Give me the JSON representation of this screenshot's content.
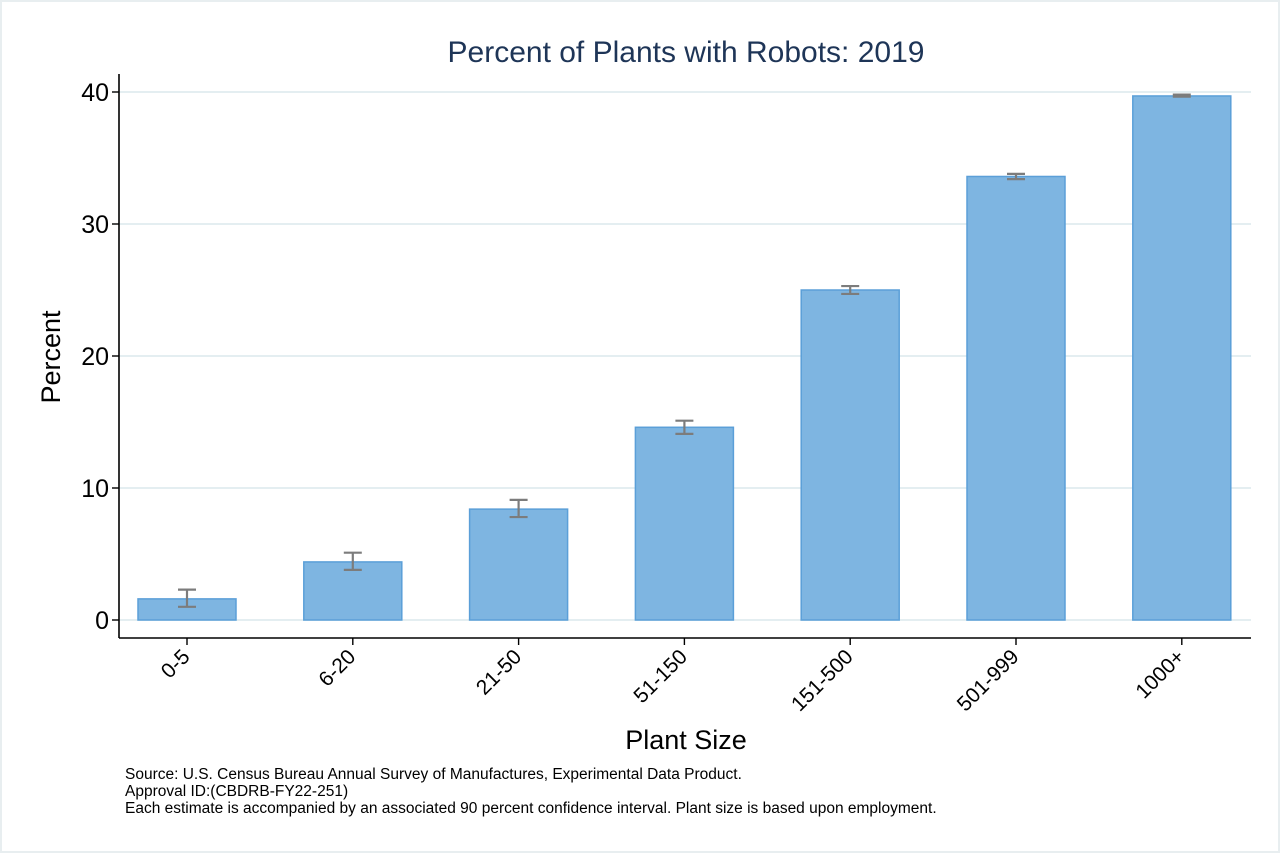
{
  "chart_data": {
    "type": "bar",
    "title": "Percent of Plants with Robots: 2019",
    "xlabel": "Plant Size",
    "ylabel": "Percent",
    "categories": [
      "0-5",
      "6-20",
      "21-50",
      "51-150",
      "151-500",
      "501-999",
      "1000+"
    ],
    "values": [
      1.6,
      4.4,
      8.4,
      14.6,
      25.0,
      33.6,
      39.7
    ],
    "error_bars": [
      {
        "low": 1.0,
        "high": 2.3
      },
      {
        "low": 3.8,
        "high": 5.1
      },
      {
        "low": 7.8,
        "high": 9.1
      },
      {
        "low": 14.1,
        "high": 15.1
      },
      {
        "low": 24.7,
        "high": 25.3
      },
      {
        "low": 33.4,
        "high": 33.8
      },
      {
        "low": 39.65,
        "high": 39.8
      }
    ],
    "yticks": [
      0,
      10,
      20,
      30,
      40
    ],
    "ylim": [
      0,
      40
    ],
    "grid": true,
    "colors": {
      "bar_fill": "#7eb5e1",
      "bar_edge": "#5b9fd8",
      "error_bar": "#7c7c7c",
      "title": "#1e3557",
      "gridline": "#e4eef1"
    }
  },
  "notes": {
    "source": "Source: U.S. Census Bureau Annual Survey of Manufactures, Experimental Data Product.",
    "approval": "Approval ID:(CBDRB-FY22-251)",
    "ci_note": "Each estimate is accompanied by an associated 90 percent confidence interval. Plant size is based upon employment."
  }
}
